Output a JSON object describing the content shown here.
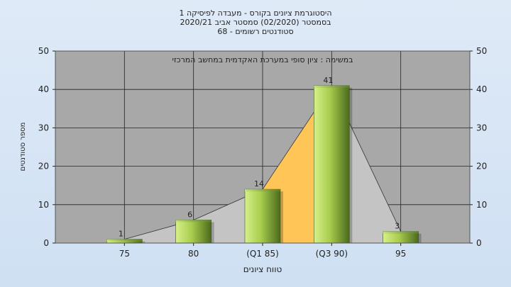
{
  "chart_data": {
    "type": "bar",
    "title_lines": [
      "היסטוגרמת ציונים בקורס - מעבדה לפיסיקה 1",
      "בסמסטר  (02/2020)  סמסטר אביב 2020/21",
      "סטודנטים רשומים - 68"
    ],
    "annotation": "במשימה : ציון סופי במערכת האקדמית במחשב המרכזי",
    "xlabel": "טווח ציונים",
    "ylabel": "מספר סטודנטים",
    "categories": [
      "75",
      "80",
      "(Q1 85)",
      "(Q3 90)",
      "95"
    ],
    "values": [
      1,
      6,
      14,
      41,
      3
    ],
    "ylim": [
      0,
      50
    ],
    "yticks": [
      0,
      10,
      20,
      30,
      40,
      50
    ],
    "grid": true,
    "colors": {
      "plot_bg": "#a8a8a8",
      "bar_light": "#d6f08a",
      "bar_dark": "#4a6a1c",
      "area_gray": "#c4c4c4",
      "area_quartile": "#ffc657",
      "line": "#333333"
    }
  }
}
